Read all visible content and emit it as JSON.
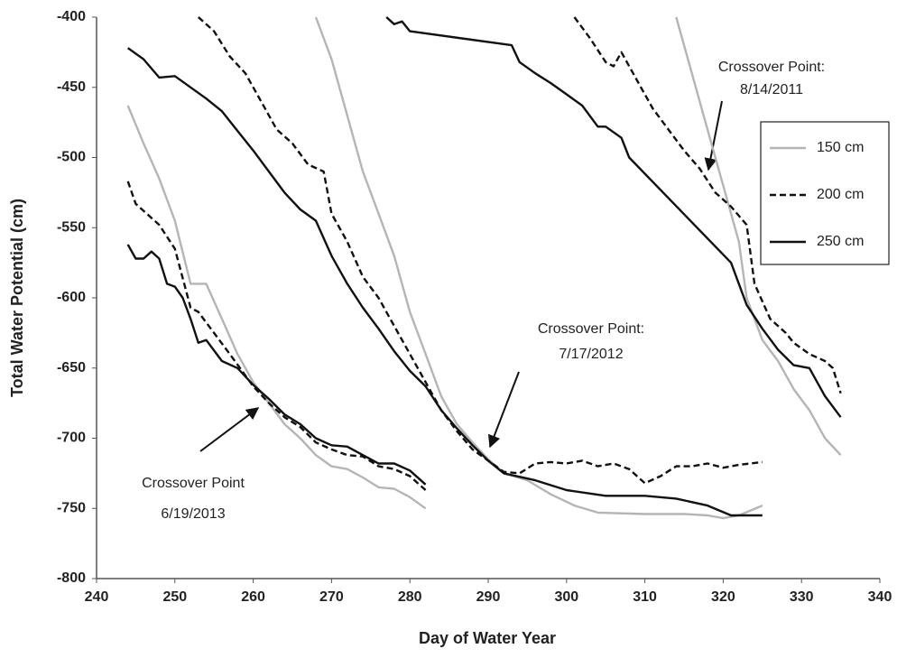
{
  "chart_data": {
    "type": "line",
    "x_label": "Day of Water Year",
    "y_label": "Total Water Potential (cm)",
    "xlim": [
      240,
      340
    ],
    "ylim": [
      -800,
      -400
    ],
    "xticks": [
      240,
      250,
      260,
      270,
      280,
      290,
      300,
      310,
      320,
      330,
      340
    ],
    "yticks": [
      -400,
      -450,
      -500,
      -550,
      -600,
      -650,
      -700,
      -750,
      -800
    ],
    "grid": false,
    "series": [
      {
        "name": "150 cm",
        "color": "#b5b5b5",
        "linestyle": "solid",
        "x": [
          244,
          246,
          248,
          250,
          252,
          254,
          256,
          258,
          260,
          262,
          264,
          266,
          268,
          270,
          272,
          274,
          276,
          278,
          280,
          282,
          null,
          268,
          270,
          272,
          274,
          276,
          278,
          280,
          282,
          284,
          286,
          288,
          290,
          292,
          295,
          298,
          301,
          304,
          310,
          315,
          318,
          320,
          322,
          325,
          null,
          314,
          316,
          318,
          320,
          322,
          323,
          325,
          327,
          329,
          331,
          333,
          335
        ],
        "values": [
          -463,
          -490,
          -515,
          -545,
          -590,
          -590,
          -615,
          -640,
          -660,
          -675,
          -690,
          -700,
          -712,
          -720,
          -722,
          -728,
          -735,
          -736,
          -742,
          -750,
          null,
          -400,
          -430,
          -470,
          -510,
          -540,
          -570,
          -610,
          -640,
          -670,
          -690,
          -703,
          -715,
          -725,
          -730,
          -740,
          -748,
          -753,
          -754,
          -754,
          -755,
          -757,
          -755,
          -748,
          null,
          -400,
          -440,
          -480,
          -520,
          -560,
          -600,
          -630,
          -645,
          -665,
          -680,
          -700,
          -712
        ]
      },
      {
        "name": "200 cm",
        "color": "#111111",
        "linestyle": "dashed",
        "x": [
          244,
          245,
          248,
          250,
          252,
          253,
          255,
          257,
          260,
          262,
          264,
          266,
          268,
          270,
          272,
          274,
          276,
          278,
          280,
          282,
          null,
          253,
          255,
          257,
          259,
          261,
          263,
          265,
          267,
          269,
          270,
          272,
          274,
          276,
          278,
          280,
          282,
          284,
          286,
          288,
          290,
          292,
          294,
          296,
          298,
          300,
          302,
          304,
          306,
          308,
          310,
          312,
          314,
          316,
          318,
          320,
          322,
          325,
          null,
          301,
          303,
          305,
          306,
          307,
          309,
          311,
          313,
          315,
          317,
          319,
          321,
          323,
          324,
          326,
          328,
          329,
          331,
          333,
          334,
          335
        ],
        "values": [
          -517,
          -533,
          -548,
          -565,
          -607,
          -610,
          -625,
          -640,
          -663,
          -675,
          -685,
          -692,
          -703,
          -708,
          -712,
          -713,
          -720,
          -722,
          -727,
          -737,
          null,
          -400,
          -410,
          -428,
          -440,
          -460,
          -480,
          -490,
          -505,
          -510,
          -540,
          -560,
          -585,
          -600,
          -620,
          -640,
          -660,
          -680,
          -695,
          -708,
          -716,
          -724,
          -725,
          -718,
          -717,
          -718,
          -716,
          -720,
          -718,
          -722,
          -732,
          -727,
          -720,
          -720,
          -718,
          -721,
          -719,
          -717,
          null,
          -400,
          -415,
          -432,
          -435,
          -425,
          -445,
          -465,
          -480,
          -495,
          -508,
          -525,
          -535,
          -548,
          -590,
          -615,
          -625,
          -632,
          -640,
          -645,
          -650,
          -668
        ]
      },
      {
        "name": "250 cm",
        "color": "#111111",
        "linestyle": "solid",
        "x": [
          244,
          245,
          246,
          247,
          248,
          249,
          250,
          251,
          252,
          253,
          254,
          256,
          258,
          260,
          262,
          264,
          266,
          268,
          270,
          272,
          274,
          276,
          278,
          280,
          282,
          null,
          244,
          246,
          248,
          250,
          252,
          254,
          256,
          258,
          260,
          262,
          264,
          266,
          268,
          270,
          272,
          274,
          276,
          278,
          280,
          282,
          284,
          286,
          288,
          290,
          292,
          296,
          300,
          305,
          310,
          314,
          318,
          321,
          325,
          null,
          277,
          278,
          279,
          280,
          293,
          294,
          296,
          298,
          300,
          302,
          304,
          305,
          307,
          308,
          321,
          323,
          325,
          327,
          329,
          331,
          333,
          335
        ],
        "values": [
          -562,
          -572,
          -572,
          -567,
          -572,
          -590,
          -592,
          -600,
          -615,
          -632,
          -630,
          -645,
          -650,
          -662,
          -672,
          -683,
          -690,
          -700,
          -705,
          -706,
          -712,
          -718,
          -718,
          -723,
          -733,
          null,
          -422,
          -430,
          -443,
          -442,
          -450,
          -458,
          -467,
          -481,
          -495,
          -510,
          -525,
          -537,
          -545,
          -570,
          -590,
          -607,
          -622,
          -638,
          -652,
          -663,
          -680,
          -693,
          -705,
          -716,
          -725,
          -730,
          -737,
          -741,
          -741,
          -743,
          -748,
          -755,
          -755,
          null,
          -400,
          -405,
          -403,
          -410,
          -420,
          -432,
          -440,
          -447,
          -455,
          -463,
          -478,
          -478,
          -486,
          -500,
          -575,
          -605,
          -622,
          -637,
          -648,
          -650,
          -670,
          -685
        ]
      }
    ],
    "annotations": [
      {
        "lines": [
          "Crossover Point:",
          "8/14/2011"
        ]
      },
      {
        "lines": [
          "Crossover Point:",
          "7/17/2012"
        ]
      },
      {
        "lines": [
          "Crossover Point",
          "6/19/2013"
        ]
      }
    ]
  }
}
